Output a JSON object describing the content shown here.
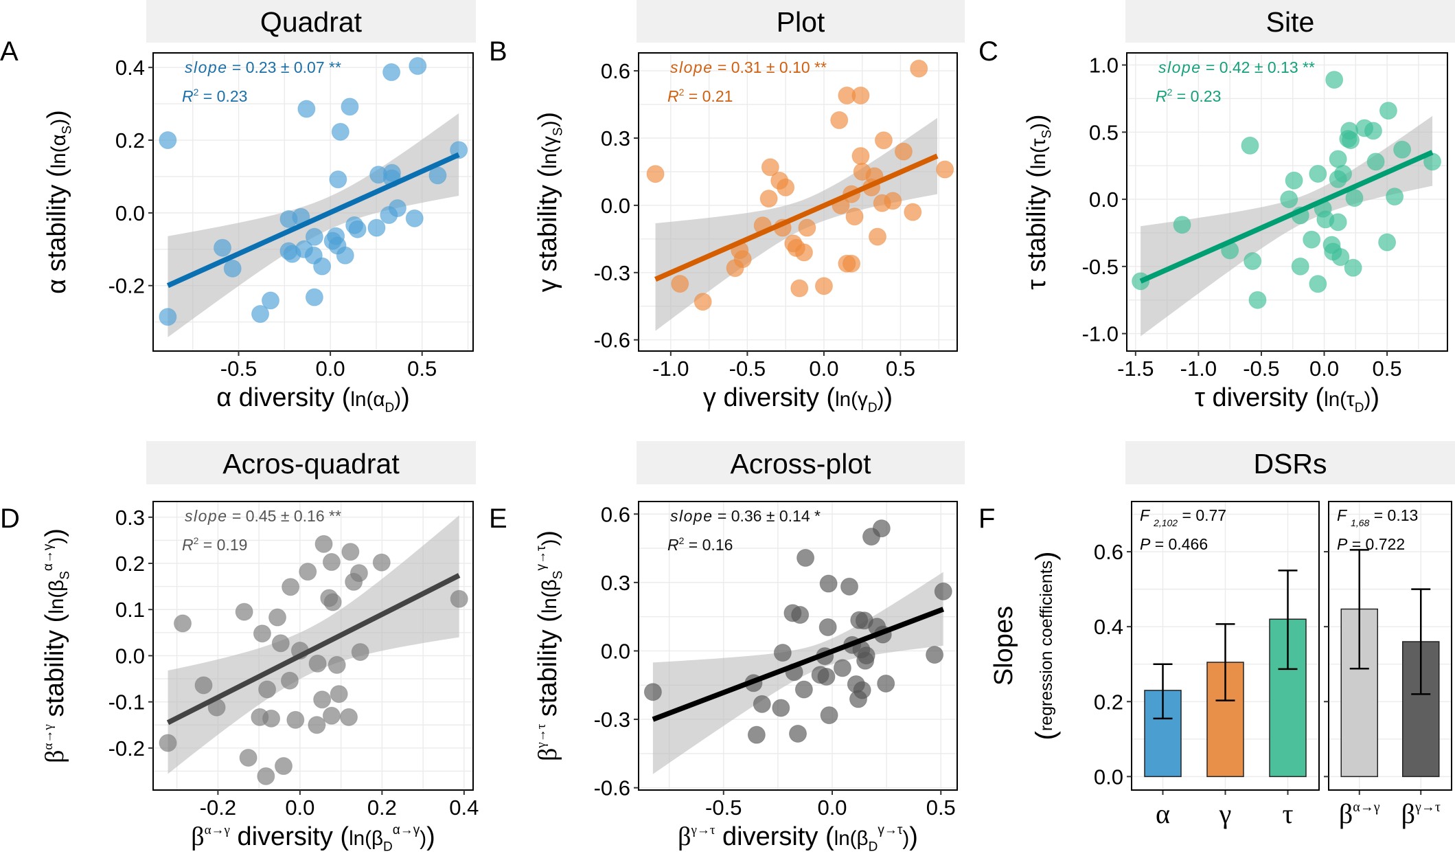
{
  "chart_data": [
    {
      "type": "scatter",
      "letter": "A",
      "title": "Quadrat",
      "line_color": "#0a70b2",
      "point_color": "#4d9fd6",
      "text_color": "#1a6fa8",
      "stats": {
        "slope_label": "slope",
        "slope_value": " = 0.23 ± 0.07 **",
        "r2_label": "R",
        "r2_sup": "2",
        "r2_value": " = 0.23"
      },
      "xlabel": [
        {
          "t": "α diversity "
        },
        {
          "t": "("
        },
        {
          "t": "ln(α",
          "small": true
        },
        {
          "t": "D",
          "sub": true
        },
        {
          "t": ")",
          "small": true
        },
        {
          "t": ")"
        }
      ],
      "ylabel": [
        {
          "t": "α stability "
        },
        {
          "t": "("
        },
        {
          "t": "ln(α",
          "small": true
        },
        {
          "t": "S",
          "sub": true
        },
        {
          "t": ")",
          "small": true
        },
        {
          "t": ")"
        }
      ],
      "xlim": [
        -0.966,
        0.778
      ],
      "ylim": [
        -0.38,
        0.44
      ],
      "xticks": [
        -0.5,
        0.0,
        0.5
      ],
      "yticks": [
        -0.2,
        0.0,
        0.2,
        0.4
      ],
      "grid": true,
      "x": [
        -0.886,
        -0.886,
        -0.13,
        0.106,
        0.055,
        0.333,
        0.476,
        0.7,
        0.585,
        0.262,
        0.336,
        0.336,
        0.042,
        0.366,
        0.319,
        0.459,
        0.252,
        0.131,
        0.148,
        -0.227,
        -0.16,
        -0.087,
        0.03,
        0.013,
        0.039,
        0.081,
        -0.091,
        -0.045,
        -0.143,
        -0.227,
        -0.208,
        -0.588,
        -0.533,
        -0.087,
        -0.326,
        -0.382
      ],
      "y": [
        0.2,
        -0.286,
        0.286,
        0.292,
        0.223,
        0.387,
        0.404,
        0.173,
        0.103,
        0.105,
        0.11,
        0.095,
        0.092,
        0.013,
        -0.006,
        -0.015,
        -0.041,
        -0.034,
        -0.045,
        -0.017,
        -0.011,
        -0.066,
        -0.064,
        -0.077,
        -0.09,
        -0.117,
        -0.117,
        -0.147,
        -0.1,
        -0.105,
        -0.113,
        -0.096,
        -0.153,
        -0.232,
        -0.241,
        -0.278
      ],
      "fit_line": {
        "x": [
          -0.886,
          0.7
        ],
        "y": [
          -0.2,
          0.16
        ]
      },
      "ci": [
        [
          -0.886,
          -0.342,
          -0.064
        ],
        [
          0.0,
          -0.045,
          0.045
        ],
        [
          0.7,
          0.047,
          0.274
        ]
      ]
    },
    {
      "type": "scatter",
      "letter": "B",
      "title": "Plot",
      "line_color": "#d55e00",
      "point_color": "#ee8a3c",
      "text_color": "#d06010",
      "stats": {
        "slope_label": "slope",
        "slope_value": " = 0.31 ± 0.10 **",
        "r2_label": "R",
        "r2_sup": "2",
        "r2_value": " = 0.21"
      },
      "xlabel": [
        {
          "t": "γ diversity "
        },
        {
          "t": "("
        },
        {
          "t": "ln(γ",
          "small": true
        },
        {
          "t": "D",
          "sub": true
        },
        {
          "t": ")",
          "small": true
        },
        {
          "t": ")"
        }
      ],
      "ylabel": [
        {
          "t": "γ stability "
        },
        {
          "t": "("
        },
        {
          "t": "ln(γ",
          "small": true
        },
        {
          "t": "S",
          "sub": true
        },
        {
          "t": ")",
          "small": true
        },
        {
          "t": ")"
        }
      ],
      "xlim": [
        -1.21,
        0.87
      ],
      "ylim": [
        -0.65,
        0.68
      ],
      "xticks": [
        -1.0,
        -0.5,
        0.0,
        0.5
      ],
      "yticks": [
        -0.6,
        -0.3,
        0.0,
        0.3,
        0.6
      ],
      "grid": true,
      "x": [
        -1.1,
        -0.94,
        -0.79,
        0.62,
        0.79,
        0.15,
        0.24,
        0.1,
        0.39,
        0.52,
        0.24,
        0.25,
        0.33,
        -0.35,
        -0.29,
        -0.25,
        -0.36,
        0.31,
        0.18,
        0.11,
        0.45,
        0.38,
        0.58,
        0.2,
        -0.27,
        -0.11,
        -0.4,
        -0.2,
        -0.18,
        -0.13,
        0.35,
        0.15,
        0.18,
        -0.55,
        -0.53,
        -0.58,
        -0.16,
        0.0
      ],
      "y": [
        0.14,
        -0.35,
        -0.43,
        0.61,
        0.16,
        0.49,
        0.49,
        0.38,
        0.29,
        0.24,
        0.22,
        0.15,
        0.13,
        0.17,
        0.11,
        0.08,
        0.03,
        0.08,
        0.05,
        0.0,
        0.02,
        0.01,
        -0.03,
        -0.05,
        -0.1,
        -0.1,
        -0.09,
        -0.17,
        -0.19,
        -0.21,
        -0.14,
        -0.26,
        -0.26,
        -0.2,
        -0.24,
        -0.28,
        -0.37,
        -0.36
      ],
      "fit_line": {
        "x": [
          -1.1,
          0.74
        ],
        "y": [
          -0.33,
          0.22
        ]
      },
      "ci": [
        [
          -1.1,
          -0.56,
          -0.08
        ],
        [
          -0.1,
          -0.06,
          0.07
        ],
        [
          0.74,
          0.05,
          0.39
        ]
      ]
    },
    {
      "type": "scatter",
      "letter": "C",
      "title": "Site",
      "line_color": "#009e73",
      "point_color": "#3dbf97",
      "text_color": "#14a07a",
      "stats": {
        "slope_label": "slope",
        "slope_value": " = 0.42 ± 0.13 **",
        "r2_label": "R",
        "r2_sup": "2",
        "r2_value": " = 0.23"
      },
      "xlabel": [
        {
          "t": "τ diversity "
        },
        {
          "t": "("
        },
        {
          "t": "ln(τ",
          "small": true
        },
        {
          "t": "D",
          "sub": true
        },
        {
          "t": ")",
          "small": true
        },
        {
          "t": ")"
        }
      ],
      "ylabel": [
        {
          "t": "τ stability "
        },
        {
          "t": "("
        },
        {
          "t": "ln(τ",
          "small": true
        },
        {
          "t": "S",
          "sub": true
        },
        {
          "t": ")",
          "small": true
        },
        {
          "t": ")"
        }
      ],
      "xlim": [
        -1.57,
        0.98
      ],
      "ylim": [
        -1.13,
        1.09
      ],
      "xticks": [
        -1.5,
        -1.0,
        -0.5,
        0.0,
        0.5
      ],
      "yticks": [
        -1.0,
        -0.5,
        0.0,
        0.5,
        1.0
      ],
      "grid": true,
      "x": [
        -1.46,
        -1.13,
        -0.75,
        -0.59,
        -0.57,
        -0.53,
        -0.24,
        -0.28,
        -0.19,
        -0.19,
        -0.05,
        -0.1,
        -0.01,
        0.01,
        -0.05,
        0.08,
        0.11,
        0.15,
        0.11,
        0.11,
        0.06,
        0.07,
        0.13,
        0.2,
        0.19,
        0.21,
        0.32,
        0.39,
        0.24,
        0.23,
        0.41,
        0.51,
        0.5,
        0.56,
        0.62,
        0.86
      ],
      "y": [
        -0.61,
        -0.19,
        -0.38,
        0.4,
        -0.46,
        -0.75,
        0.14,
        0.0,
        -0.12,
        -0.5,
        0.19,
        -0.3,
        -0.07,
        -0.15,
        -0.63,
        0.89,
        0.3,
        0.19,
        0.15,
        -0.17,
        -0.34,
        -0.39,
        -0.43,
        0.51,
        0.45,
        0.44,
        0.53,
        0.51,
        0.01,
        -0.51,
        0.28,
        0.66,
        -0.32,
        0.02,
        0.37,
        0.28
      ],
      "fit_line": {
        "x": [
          -1.46,
          0.86
        ],
        "y": [
          -0.61,
          0.35
        ]
      },
      "ci": [
        [
          -1.46,
          -1.02,
          -0.2
        ],
        [
          -0.1,
          -0.12,
          0.08
        ],
        [
          0.86,
          0.1,
          0.62
        ]
      ]
    },
    {
      "type": "scatter",
      "letter": "D",
      "title": "Acros-quadrat",
      "line_color": "#444444",
      "point_color": "#7a7a7a",
      "text_color": "#555555",
      "stats": {
        "slope_label": "slope",
        "slope_value": " = 0.45 ± 0.16 **",
        "r2_label": "R",
        "r2_sup": "2",
        "r2_value": " = 0.19"
      },
      "xlabel": [
        {
          "t": "β",
          "serif": true
        },
        {
          "t": "α→γ",
          "sup": true,
          "serif": true
        },
        {
          "t": " diversity "
        },
        {
          "t": "("
        },
        {
          "t": "ln(β",
          "small": true
        },
        {
          "t": "D",
          "sub": true
        },
        {
          "t": "α→γ",
          "sup": true
        },
        {
          "t": ")",
          "small": true
        },
        {
          "t": ")"
        }
      ],
      "ylabel": [
        {
          "t": "β",
          "serif": true
        },
        {
          "t": "α→γ",
          "sup": true,
          "serif": true
        },
        {
          "t": " stability "
        },
        {
          "t": "("
        },
        {
          "t": "ln(β",
          "small": true
        },
        {
          "t": "S",
          "sub": true
        },
        {
          "t": "α→γ",
          "sup": true
        },
        {
          "t": ")",
          "small": true
        },
        {
          "t": ")"
        }
      ],
      "xlim": [
        -0.358,
        0.422
      ],
      "ylim": [
        -0.291,
        0.334
      ],
      "xticks": [
        -0.2,
        0.0,
        0.2,
        0.4
      ],
      "yticks": [
        -0.2,
        -0.1,
        0.0,
        0.1,
        0.2,
        0.3
      ],
      "grid": true,
      "x": [
        -0.322,
        -0.286,
        -0.235,
        -0.203,
        -0.136,
        -0.126,
        -0.098,
        -0.092,
        -0.083,
        -0.08,
        -0.07,
        -0.055,
        -0.047,
        -0.04,
        -0.025,
        -0.023,
        -0.011,
        0.0,
        0.019,
        0.043,
        0.041,
        0.054,
        0.058,
        0.071,
        0.08,
        0.077,
        0.077,
        0.09,
        0.095,
        0.119,
        0.123,
        0.131,
        0.144,
        0.147,
        0.199,
        0.388
      ],
      "y": [
        -0.189,
        0.07,
        -0.064,
        -0.112,
        0.095,
        -0.221,
        -0.133,
        0.048,
        -0.261,
        -0.073,
        -0.136,
        0.083,
        0.027,
        -0.239,
        -0.054,
        0.149,
        -0.139,
        0.011,
        0.182,
        -0.017,
        -0.15,
        -0.095,
        0.242,
        0.125,
        0.116,
        0.203,
        -0.13,
        -0.02,
        -0.083,
        -0.133,
        0.225,
        0.16,
        0.179,
        0.008,
        0.202,
        0.123
      ],
      "fit_line": {
        "x": [
          -0.322,
          0.388
        ],
        "y": [
          -0.145,
          0.174
        ]
      },
      "ci": [
        [
          -0.322,
          -0.256,
          -0.032
        ],
        [
          0.02,
          -0.04,
          0.06
        ],
        [
          0.388,
          0.04,
          0.304
        ]
      ]
    },
    {
      "type": "scatter",
      "letter": "E",
      "title": "Across-plot",
      "line_color": "#000000",
      "point_color": "#555555",
      "text_color": "#111111",
      "stats": {
        "slope_label": "slope",
        "slope_value": " = 0.36 ± 0.14 *",
        "r2_label": "R",
        "r2_sup": "2",
        "r2_value": " = 0.16"
      },
      "xlabel": [
        {
          "t": "β",
          "serif": true
        },
        {
          "t": "γ→τ",
          "sup": true,
          "serif": true
        },
        {
          "t": " diversity "
        },
        {
          "t": "("
        },
        {
          "t": "ln(β",
          "small": true
        },
        {
          "t": "D",
          "sub": true
        },
        {
          "t": "γ→τ",
          "sup": true
        },
        {
          "t": ")",
          "small": true
        },
        {
          "t": ")"
        }
      ],
      "ylabel": [
        {
          "t": "β",
          "serif": true
        },
        {
          "t": "γ→τ",
          "sup": true,
          "serif": true
        },
        {
          "t": " stability "
        },
        {
          "t": "("
        },
        {
          "t": "ln(β",
          "small": true
        },
        {
          "t": "S",
          "sub": true
        },
        {
          "t": "γ→τ",
          "sup": true
        },
        {
          "t": ")",
          "small": true
        },
        {
          "t": ")"
        }
      ],
      "xlim": [
        -0.891,
        0.575
      ],
      "ylim": [
        -0.61,
        0.655
      ],
      "xticks": [
        -0.5,
        0.0,
        0.5
      ],
      "yticks": [
        -0.6,
        -0.3,
        0.0,
        0.3,
        0.6
      ],
      "grid": true,
      "x": [
        -0.825,
        -0.362,
        -0.348,
        -0.323,
        -0.236,
        -0.228,
        -0.182,
        -0.148,
        -0.175,
        -0.13,
        -0.158,
        -0.123,
        -0.055,
        -0.027,
        -0.034,
        -0.02,
        -0.017,
        -0.014,
        0.047,
        0.079,
        0.092,
        0.11,
        0.12,
        0.138,
        0.124,
        0.148,
        0.134,
        0.157,
        0.152,
        0.18,
        0.227,
        0.206,
        0.233,
        0.247,
        0.471,
        0.511
      ],
      "y": [
        -0.18,
        -0.141,
        -0.368,
        -0.233,
        -0.25,
        -0.008,
        0.166,
        0.158,
        -0.093,
        -0.169,
        -0.363,
        0.408,
        -0.105,
        -0.113,
        -0.023,
        0.104,
        0.295,
        -0.282,
        -0.075,
        0.282,
        0.026,
        -0.146,
        -0.211,
        -0.172,
        0.135,
        0.133,
        0.006,
        -0.02,
        -0.043,
        0.501,
        0.537,
        0.106,
        0.072,
        -0.143,
        -0.017,
        0.261
      ],
      "fit_line": {
        "x": [
          -0.825,
          0.511
        ],
        "y": [
          -0.3,
          0.183
        ]
      },
      "ci": [
        [
          -0.825,
          -0.54,
          -0.051
        ],
        [
          -0.05,
          -0.07,
          0.04
        ],
        [
          0.511,
          0.023,
          0.346
        ]
      ]
    },
    {
      "type": "bar",
      "letter": "F",
      "title": "DSRs",
      "ylabel": "Slopes",
      "ylabel_sub": "regression coefficients",
      "ylim": [
        -0.036,
        0.734
      ],
      "yticks": [
        0.0,
        0.2,
        0.4,
        0.6
      ],
      "grid": true,
      "facets": [
        {
          "stat_f": "F",
          "stat_f_sub": "2,102",
          "stat_f_value": " = 0.77",
          "stat_p": "P",
          "stat_p_value": " = 0.466",
          "bars": [
            {
              "label": "α",
              "value": 0.23,
              "err_low": 0.155,
              "err_high": 0.3,
              "color": "#4a9fd0"
            },
            {
              "label": "γ",
              "value": 0.305,
              "err_low": 0.203,
              "err_high": 0.407,
              "color": "#e8904a"
            },
            {
              "label": "τ",
              "value": 0.42,
              "err_low": 0.287,
              "err_high": 0.55,
              "color": "#4cc09a"
            }
          ]
        },
        {
          "stat_f": "F",
          "stat_f_sub": "1,68",
          "stat_f_value": " = 0.13",
          "stat_p": "P",
          "stat_p_value": " = 0.722",
          "bars": [
            {
              "label": "β",
              "label_sup": "α→γ",
              "value": 0.447,
              "err_low": 0.288,
              "err_high": 0.605,
              "color": "#cccccc"
            },
            {
              "label": "β",
              "label_sup": "γ→τ",
              "value": 0.36,
              "err_low": 0.22,
              "err_high": 0.5,
              "color": "#5f5f5f"
            }
          ]
        }
      ]
    }
  ]
}
